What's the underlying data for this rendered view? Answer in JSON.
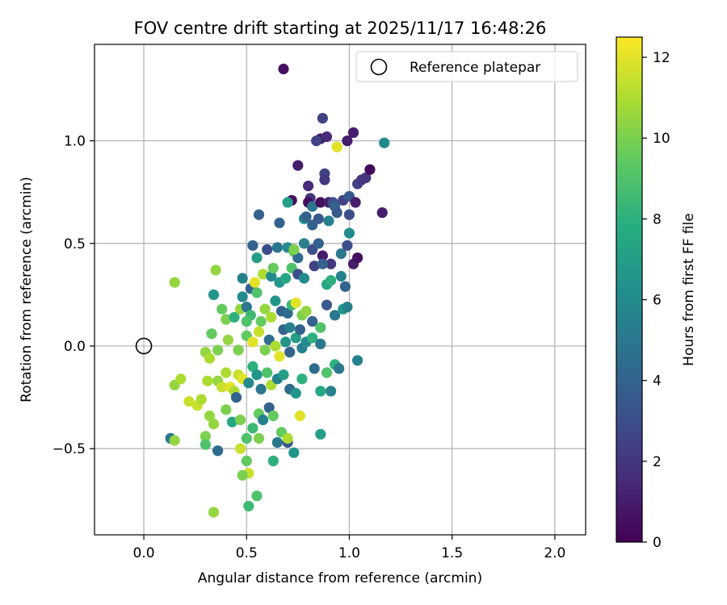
{
  "chart_data": {
    "type": "scatter",
    "title": "FOV centre drift starting at 2025/11/17 16:48:26",
    "xlabel": "Angular distance from reference (arcmin)",
    "ylabel": "Rotation from reference (arcmin)",
    "xlim": [
      -0.24,
      2.15
    ],
    "ylim": [
      -0.92,
      1.47
    ],
    "xticks": [
      0.0,
      0.5,
      1.0,
      1.5,
      2.0
    ],
    "xtick_labels": [
      "0.0",
      "0.5",
      "1.0",
      "1.5",
      "2.0"
    ],
    "yticks": [
      -0.5,
      0.0,
      0.5,
      1.0
    ],
    "ytick_labels": [
      "−0.5",
      "0.0",
      "0.5",
      "1.0"
    ],
    "grid": true,
    "legend": {
      "label": "Reference platepar",
      "position": "top-right"
    },
    "reference_point": {
      "x": 0.0,
      "y": 0.0
    },
    "colorbar": {
      "label": "Hours from first FF file",
      "min": 0,
      "max": 12.5,
      "ticks": [
        0,
        2,
        4,
        6,
        8,
        10,
        12
      ],
      "tick_labels": [
        "0",
        "2",
        "4",
        "6",
        "8",
        "10",
        "12"
      ],
      "colormap": "viridis"
    },
    "colormap_stops": [
      "#440154",
      "#472c7a",
      "#3b518b",
      "#2c718e",
      "#21908d",
      "#27ad81",
      "#5cc863",
      "#aadc32",
      "#fde725"
    ],
    "points": [
      [
        0.68,
        1.35,
        0.5
      ],
      [
        0.87,
        1.11,
        2.5
      ],
      [
        0.86,
        1.01,
        1.0
      ],
      [
        0.89,
        1.02,
        1.5
      ],
      [
        0.84,
        1.0,
        2.5
      ],
      [
        0.94,
        0.97,
        12.0
      ],
      [
        0.99,
        1.0,
        1.0
      ],
      [
        1.02,
        1.04,
        1.0
      ],
      [
        1.17,
        0.99,
        6.0
      ],
      [
        0.75,
        0.88,
        1.0
      ],
      [
        0.8,
        0.78,
        1.5
      ],
      [
        0.81,
        0.72,
        2.0
      ],
      [
        0.88,
        0.84,
        2.5
      ],
      [
        0.88,
        0.81,
        2.0
      ],
      [
        1.04,
        0.79,
        2.5
      ],
      [
        1.06,
        0.81,
        2.0
      ],
      [
        1.08,
        0.82,
        2.0
      ],
      [
        1.1,
        0.86,
        0.3
      ],
      [
        1.16,
        0.65,
        1.0
      ],
      [
        0.72,
        0.71,
        0.5
      ],
      [
        0.8,
        0.7,
        0.5
      ],
      [
        0.82,
        0.68,
        5.0
      ],
      [
        0.86,
        0.7,
        0.5
      ],
      [
        0.9,
        0.7,
        1.0
      ],
      [
        0.92,
        0.7,
        3.0
      ],
      [
        0.93,
        0.68,
        4.0
      ],
      [
        0.97,
        0.71,
        2.5
      ],
      [
        1.0,
        0.73,
        3.5
      ],
      [
        1.03,
        0.7,
        1.0
      ],
      [
        0.56,
        0.64,
        4.0
      ],
      [
        0.66,
        0.6,
        4.0
      ],
      [
        0.7,
        0.7,
        7.0
      ],
      [
        0.78,
        0.62,
        6.0
      ],
      [
        0.79,
        0.63,
        4.0
      ],
      [
        0.82,
        0.59,
        4.0
      ],
      [
        0.85,
        0.62,
        3.5
      ],
      [
        0.9,
        0.61,
        5.5
      ],
      [
        0.94,
        0.65,
        3.5
      ],
      [
        1.0,
        0.64,
        3.0
      ],
      [
        0.53,
        0.49,
        4.0
      ],
      [
        0.55,
        0.43,
        7.0
      ],
      [
        0.6,
        0.47,
        3.0
      ],
      [
        0.65,
        0.48,
        5.0
      ],
      [
        0.7,
        0.48,
        6.0
      ],
      [
        0.73,
        0.46,
        9.5
      ],
      [
        0.73,
        0.47,
        1.5
      ],
      [
        0.75,
        0.43,
        4.5
      ],
      [
        0.78,
        0.5,
        5.5
      ],
      [
        0.82,
        0.47,
        3.0
      ],
      [
        0.85,
        0.5,
        4.0
      ],
      [
        0.87,
        0.44,
        1.0
      ],
      [
        0.91,
        0.4,
        2.0
      ],
      [
        0.96,
        0.45,
        5.0
      ],
      [
        0.99,
        0.49,
        3.0
      ],
      [
        1.0,
        0.55,
        6.0
      ],
      [
        1.02,
        0.4,
        1.0
      ],
      [
        1.04,
        0.43,
        0.5
      ],
      [
        0.73,
        0.47,
        10.0
      ],
      [
        0.35,
        0.37,
        10.5
      ],
      [
        0.48,
        0.33,
        5.5
      ],
      [
        0.52,
        0.28,
        4.0
      ],
      [
        0.54,
        0.31,
        12.0
      ],
      [
        0.58,
        0.35,
        11.0
      ],
      [
        0.62,
        0.34,
        6.0
      ],
      [
        0.63,
        0.38,
        9.5
      ],
      [
        0.66,
        0.31,
        6.5
      ],
      [
        0.69,
        0.33,
        7.5
      ],
      [
        0.72,
        0.38,
        9.0
      ],
      [
        0.75,
        0.35,
        3.0
      ],
      [
        0.78,
        0.33,
        6.0
      ],
      [
        0.83,
        0.39,
        2.5
      ],
      [
        0.87,
        0.4,
        4.0
      ],
      [
        0.89,
        0.3,
        7.5
      ],
      [
        0.91,
        0.32,
        8.0
      ],
      [
        0.96,
        0.34,
        5.5
      ],
      [
        0.98,
        0.29,
        4.0
      ],
      [
        0.15,
        0.31,
        10.5
      ],
      [
        0.34,
        0.25,
        6.5
      ],
      [
        0.38,
        0.18,
        9.5
      ],
      [
        0.4,
        0.13,
        10.0
      ],
      [
        0.44,
        0.14,
        8.0
      ],
      [
        0.47,
        0.18,
        10.5
      ],
      [
        0.48,
        0.24,
        6.0
      ],
      [
        0.5,
        0.19,
        5.0
      ],
      [
        0.52,
        0.15,
        8.5
      ],
      [
        0.55,
        0.26,
        9.0
      ],
      [
        0.57,
        0.12,
        9.5
      ],
      [
        0.59,
        0.18,
        10.5
      ],
      [
        0.62,
        0.14,
        11.0
      ],
      [
        0.64,
        0.22,
        6.5
      ],
      [
        0.67,
        0.17,
        4.0
      ],
      [
        0.7,
        0.16,
        4.5
      ],
      [
        0.72,
        0.2,
        8.5
      ],
      [
        0.74,
        0.21,
        12.0
      ],
      [
        0.77,
        0.15,
        10.0
      ],
      [
        0.79,
        0.17,
        10.5
      ],
      [
        0.82,
        0.12,
        4.0
      ],
      [
        0.86,
        0.09,
        9.0
      ],
      [
        0.89,
        0.2,
        3.5
      ],
      [
        0.93,
        0.15,
        5.0
      ],
      [
        0.97,
        0.18,
        6.5
      ],
      [
        0.99,
        0.19,
        5.5
      ],
      [
        0.5,
        0.12,
        9.0
      ],
      [
        0.33,
        0.06,
        9.5
      ],
      [
        0.36,
        -0.02,
        10.0
      ],
      [
        0.41,
        0.03,
        10.5
      ],
      [
        0.46,
        -0.02,
        10.0
      ],
      [
        0.5,
        0.05,
        9.5
      ],
      [
        0.53,
        0.02,
        12.0
      ],
      [
        0.56,
        0.07,
        11.5
      ],
      [
        0.59,
        -0.02,
        10.0
      ],
      [
        0.61,
        0.03,
        4.5
      ],
      [
        0.64,
        0.0,
        11.0
      ],
      [
        0.66,
        -0.05,
        12.0
      ],
      [
        0.69,
        0.02,
        6.5
      ],
      [
        0.71,
        -0.03,
        4.0
      ],
      [
        0.74,
        0.04,
        7.0
      ],
      [
        0.77,
        -0.01,
        5.5
      ],
      [
        0.79,
        0.02,
        6.0
      ],
      [
        0.82,
        0.04,
        8.0
      ],
      [
        0.86,
        0.01,
        5.0
      ],
      [
        0.68,
        0.08,
        4.0
      ],
      [
        0.71,
        0.09,
        5.5
      ],
      [
        0.76,
        0.08,
        4.0
      ],
      [
        1.04,
        -0.07,
        5.5
      ],
      [
        0.3,
        -0.03,
        10.5
      ],
      [
        0.32,
        -0.06,
        11.0
      ],
      [
        0.15,
        -0.19,
        10.5
      ],
      [
        0.18,
        -0.16,
        11.0
      ],
      [
        0.31,
        -0.17,
        11.0
      ],
      [
        0.36,
        -0.17,
        10.5
      ],
      [
        0.38,
        -0.2,
        11.5
      ],
      [
        0.4,
        -0.13,
        11.0
      ],
      [
        0.42,
        -0.2,
        12.0
      ],
      [
        0.44,
        -0.22,
        11.0
      ],
      [
        0.46,
        -0.14,
        11.5
      ],
      [
        0.48,
        -0.16,
        12.0
      ],
      [
        0.51,
        -0.18,
        6.0
      ],
      [
        0.53,
        -0.1,
        8.0
      ],
      [
        0.55,
        -0.14,
        6.5
      ],
      [
        0.57,
        -0.21,
        5.0
      ],
      [
        0.6,
        -0.13,
        9.0
      ],
      [
        0.62,
        -0.19,
        11.0
      ],
      [
        0.65,
        -0.16,
        5.5
      ],
      [
        0.68,
        -0.14,
        7.0
      ],
      [
        0.71,
        -0.21,
        4.5
      ],
      [
        0.74,
        -0.23,
        6.5
      ],
      [
        0.77,
        -0.16,
        8.0
      ],
      [
        0.83,
        -0.11,
        4.5
      ],
      [
        0.86,
        -0.22,
        7.5
      ],
      [
        0.89,
        -0.13,
        9.0
      ],
      [
        0.93,
        -0.09,
        8.0
      ],
      [
        0.95,
        -0.11,
        5.0
      ],
      [
        0.91,
        -0.22,
        5.5
      ],
      [
        0.13,
        -0.45,
        5.0
      ],
      [
        0.15,
        -0.46,
        10.5
      ],
      [
        0.22,
        -0.27,
        11.5
      ],
      [
        0.26,
        -0.29,
        11.5
      ],
      [
        0.3,
        -0.44,
        10.0
      ],
      [
        0.32,
        -0.34,
        10.5
      ],
      [
        0.34,
        -0.38,
        10.5
      ],
      [
        0.36,
        -0.51,
        4.5
      ],
      [
        0.4,
        -0.31,
        10.0
      ],
      [
        0.43,
        -0.37,
        7.5
      ],
      [
        0.45,
        -0.25,
        4.0
      ],
      [
        0.47,
        -0.36,
        10.0
      ],
      [
        0.5,
        -0.45,
        9.0
      ],
      [
        0.53,
        -0.4,
        8.5
      ],
      [
        0.56,
        -0.33,
        9.5
      ],
      [
        0.58,
        -0.36,
        5.5
      ],
      [
        0.61,
        -0.3,
        4.0
      ],
      [
        0.63,
        -0.34,
        9.5
      ],
      [
        0.65,
        -0.47,
        5.0
      ],
      [
        0.67,
        -0.42,
        9.5
      ],
      [
        0.7,
        -0.47,
        3.5
      ],
      [
        0.73,
        -0.52,
        6.5
      ],
      [
        0.76,
        -0.34,
        12.0
      ],
      [
        0.86,
        -0.43,
        7.0
      ],
      [
        0.3,
        -0.48,
        9.0
      ],
      [
        0.28,
        -0.26,
        11.0
      ],
      [
        0.47,
        -0.5,
        11.5
      ],
      [
        0.5,
        -0.56,
        9.5
      ],
      [
        0.51,
        -0.62,
        11.5
      ],
      [
        0.48,
        -0.63,
        10.0
      ],
      [
        0.55,
        -0.73,
        9.0
      ],
      [
        0.51,
        -0.78,
        8.5
      ],
      [
        0.34,
        -0.81,
        10.5
      ],
      [
        0.63,
        -0.56,
        8.0
      ],
      [
        0.56,
        -0.45,
        10.0
      ],
      [
        0.7,
        -0.45,
        11.0
      ]
    ]
  }
}
